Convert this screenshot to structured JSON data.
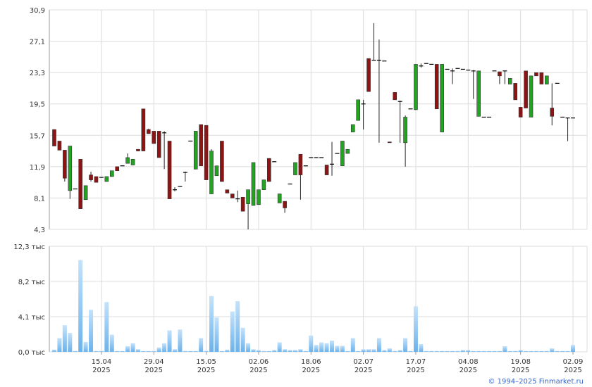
{
  "chart_data": [
    {
      "type": "candlestick",
      "open": [
        16.4,
        15.0,
        13.9,
        9.0,
        9.2,
        12.8,
        7.9,
        10.9,
        10.7,
        10.6,
        10.1,
        10.7,
        11.9,
        12.0,
        12.3,
        12.1,
        14.0,
        18.9,
        16.4,
        16.2,
        16.2,
        16.0,
        15.0,
        9.1,
        9.5,
        11.2,
        15.0,
        11.6,
        17.0,
        16.9,
        8.6,
        10.8,
        15.0,
        9.1,
        8.6,
        8.0,
        8.2,
        7.4,
        7.2,
        7.3,
        9.1,
        12.9,
        12.5,
        7.5,
        7.7,
        9.8,
        10.9,
        13.4,
        12.0,
        13.0,
        13.0,
        13.0,
        12.1,
        12.2,
        13.5,
        12.0,
        13.5,
        16.1,
        17.5,
        19.5,
        25.0,
        24.8,
        24.8,
        24.7,
        14.9,
        20.9,
        19.8,
        14.8,
        18.9,
        18.8,
        24.1,
        24.4,
        24.3,
        24.3,
        16.1,
        23.7,
        23.5,
        23.8,
        23.7,
        23.6,
        23.5,
        18.0,
        17.9,
        17.9,
        23.5,
        23.4,
        23.5,
        21.9,
        22.0,
        19.1,
        23.5,
        17.9,
        23.3,
        23.3,
        21.9,
        19.0,
        22.0,
        17.9,
        17.8,
        17.8
      ],
      "high": [
        16.4,
        15.0,
        13.9,
        14.4,
        9.2,
        12.8,
        9.6,
        11.3,
        10.7,
        10.6,
        10.7,
        11.4,
        11.9,
        12.0,
        13.5,
        12.8,
        14.0,
        18.9,
        16.5,
        16.2,
        16.2,
        16.2,
        15.0,
        9.4,
        9.5,
        11.3,
        15.0,
        16.2,
        17.0,
        16.9,
        14.0,
        12.0,
        15.0,
        9.1,
        8.6,
        9.0,
        8.2,
        9.1,
        12.4,
        9.1,
        10.3,
        12.9,
        12.5,
        8.6,
        7.7,
        9.8,
        12.4,
        13.4,
        12.0,
        13.0,
        13.0,
        13.0,
        12.1,
        14.9,
        13.5,
        15.0,
        14.0,
        17.0,
        20.0,
        20.0,
        25.0,
        29.3,
        27.3,
        24.7,
        14.9,
        20.9,
        19.9,
        18.1,
        18.9,
        24.3,
        24.4,
        24.4,
        24.3,
        24.3,
        24.3,
        23.7,
        23.8,
        23.8,
        23.7,
        23.6,
        23.6,
        23.5,
        17.9,
        17.9,
        23.5,
        23.4,
        23.5,
        22.6,
        22.0,
        19.1,
        23.5,
        22.9,
        23.3,
        23.3,
        22.9,
        22.0,
        22.0,
        17.9,
        17.8,
        17.8
      ],
      "low": [
        14.4,
        13.9,
        10.1,
        8.0,
        9.2,
        6.8,
        7.9,
        10.1,
        10.0,
        10.6,
        10.1,
        10.7,
        11.4,
        12.0,
        12.3,
        12.1,
        13.8,
        13.8,
        15.9,
        14.7,
        13.0,
        11.6,
        8.0,
        8.9,
        9.5,
        10.1,
        15.0,
        11.6,
        12.0,
        10.3,
        8.6,
        10.8,
        10.1,
        8.7,
        8.1,
        7.6,
        6.5,
        4.3,
        7.2,
        7.3,
        9.1,
        10.1,
        12.5,
        7.5,
        6.3,
        9.8,
        10.9,
        7.9,
        12.0,
        13.0,
        13.0,
        13.0,
        10.9,
        10.8,
        13.5,
        12.0,
        13.5,
        16.1,
        17.5,
        16.4,
        21.0,
        24.8,
        14.8,
        24.7,
        14.8,
        20.0,
        14.8,
        11.9,
        18.9,
        18.8,
        23.9,
        24.4,
        24.3,
        18.9,
        16.1,
        23.7,
        21.9,
        23.8,
        23.7,
        23.6,
        20.1,
        18.0,
        17.9,
        17.9,
        23.5,
        21.9,
        21.9,
        21.9,
        20.0,
        17.9,
        19.0,
        17.9,
        22.9,
        21.9,
        21.9,
        16.9,
        22.0,
        17.9,
        15.0,
        17.8
      ],
      "close": [
        14.4,
        13.9,
        10.5,
        14.4,
        9.2,
        6.8,
        9.6,
        10.3,
        10.0,
        10.6,
        10.7,
        11.4,
        11.4,
        12.0,
        13.0,
        12.8,
        13.8,
        13.8,
        15.9,
        14.7,
        13.0,
        16.0,
        8.0,
        9.1,
        9.5,
        11.2,
        15.0,
        16.2,
        12.0,
        10.3,
        13.8,
        12.0,
        10.1,
        8.7,
        8.1,
        8.0,
        6.5,
        9.1,
        12.4,
        9.1,
        10.3,
        10.1,
        12.5,
        8.6,
        6.9,
        9.8,
        12.4,
        10.9,
        12.0,
        13.0,
        13.0,
        13.0,
        10.9,
        12.2,
        13.5,
        15.0,
        14.0,
        17.0,
        20.0,
        19.5,
        21.0,
        24.8,
        24.8,
        24.7,
        14.8,
        20.0,
        19.8,
        17.9,
        18.9,
        24.3,
        24.1,
        24.4,
        24.3,
        18.9,
        24.3,
        23.7,
        23.5,
        23.8,
        23.7,
        23.6,
        23.5,
        23.5,
        17.9,
        17.9,
        23.5,
        22.9,
        23.5,
        22.6,
        20.0,
        17.9,
        19.0,
        22.9,
        22.9,
        21.9,
        22.9,
        18.0,
        22.0,
        17.9,
        17.8,
        17.8
      ],
      "up_color": "#22a322",
      "down_color": "#8b1414",
      "ylim": [
        4.3,
        30.9
      ],
      "yticks": [
        {
          "value": 4.3,
          "label": "4,3"
        },
        {
          "value": 8.1,
          "label": "8,1"
        },
        {
          "value": 11.9,
          "label": "11,9"
        },
        {
          "value": 15.7,
          "label": "15,7"
        },
        {
          "value": 19.5,
          "label": "19,5"
        },
        {
          "value": 23.3,
          "label": "23,3"
        },
        {
          "value": 27.1,
          "label": "27,1"
        },
        {
          "value": 30.9,
          "label": "30,9"
        }
      ],
      "grid": true
    },
    {
      "type": "bar",
      "categories": [
        null,
        null,
        null,
        null,
        null,
        null,
        null,
        null,
        null,
        "15.04\n2025",
        null,
        null,
        null,
        null,
        null,
        null,
        null,
        null,
        null,
        "29.04\n2025",
        null,
        null,
        null,
        null,
        null,
        null,
        null,
        null,
        null,
        "15.05\n2025",
        null,
        null,
        null,
        null,
        null,
        null,
        null,
        null,
        null,
        "02.06\n2025",
        null,
        null,
        null,
        null,
        null,
        null,
        null,
        null,
        null,
        "18.06\n2025",
        null,
        null,
        null,
        null,
        null,
        null,
        null,
        null,
        null,
        "02.07\n2025",
        null,
        null,
        null,
        null,
        null,
        null,
        null,
        null,
        null,
        "17.07\n2025",
        null,
        null,
        null,
        null,
        null,
        null,
        null,
        null,
        null,
        "04.08\n2025",
        null,
        null,
        null,
        null,
        null,
        null,
        null,
        null,
        null,
        "19.08\n2025",
        null,
        null,
        null,
        null,
        null,
        null,
        null,
        null,
        null,
        "02.09\n2025"
      ],
      "values": [
        0.25,
        1.6,
        3.1,
        2.2,
        0.1,
        10.7,
        1.15,
        4.9,
        0.1,
        0.1,
        5.8,
        2.0,
        0.1,
        0.1,
        0.65,
        1.0,
        0.3,
        0.1,
        0.1,
        0.1,
        0.5,
        1.0,
        2.5,
        0.3,
        2.6,
        0.1,
        0.1,
        0.1,
        1.6,
        0.1,
        6.5,
        4.0,
        0.1,
        0.25,
        4.7,
        5.9,
        2.8,
        1.0,
        0.3,
        0.2,
        0.1,
        0.1,
        0.2,
        1.1,
        0.3,
        0.2,
        0.2,
        0.3,
        0.1,
        1.9,
        0.8,
        1.1,
        1.0,
        1.3,
        0.7,
        0.7,
        0.1,
        1.6,
        0.1,
        0.3,
        0.3,
        0.3,
        1.6,
        0.2,
        0.4,
        0.1,
        0.2,
        1.6,
        0.1,
        5.3,
        0.9,
        0.1,
        0.1,
        0.1,
        0.1,
        0.1,
        0.1,
        0.1,
        0.2,
        0.2,
        0.1,
        0.1,
        0.1,
        0.1,
        0.1,
        0.1,
        0.65,
        0.1,
        0.1,
        0.2,
        0.1,
        0.1,
        0.1,
        0.1,
        0.1,
        0.4,
        0.1,
        0.1,
        0.1,
        0.8
      ],
      "color": "#7dbdf0",
      "ylim": [
        0,
        12.3
      ],
      "yticks": [
        {
          "value": 0,
          "label": "0,0 тыс"
        },
        {
          "value": 4.1,
          "label": "4,1 тыс"
        },
        {
          "value": 8.2,
          "label": "8,2 тыс"
        },
        {
          "value": 12.3,
          "label": "12,3 тыс"
        }
      ],
      "grid": true
    }
  ],
  "footer": "© 1994–2025 Finmarket.ru"
}
